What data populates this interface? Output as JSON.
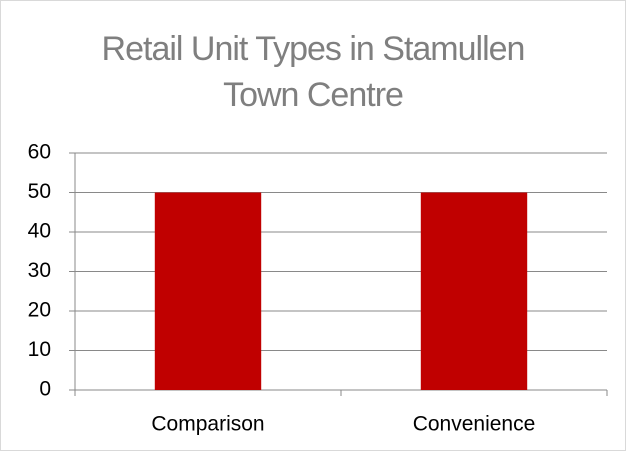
{
  "chart_data": {
    "type": "bar",
    "title": "Retail Unit Types in Stamullen Town Centre",
    "categories": [
      "Comparison",
      "Convenience"
    ],
    "values": [
      50,
      50
    ],
    "color": "#c00000",
    "ylim": [
      0,
      60
    ],
    "yticks": [
      0,
      10,
      20,
      30,
      40,
      50,
      60
    ],
    "grid": true
  }
}
